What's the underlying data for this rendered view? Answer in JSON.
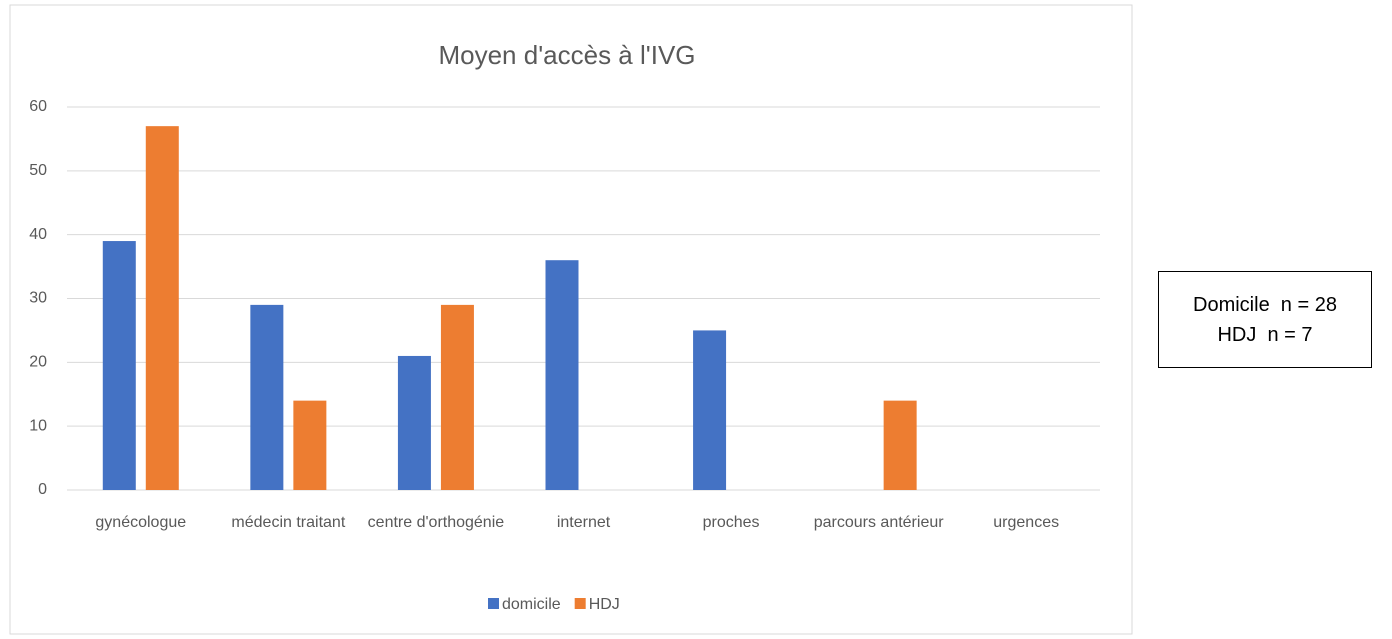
{
  "chart_data": {
    "type": "bar",
    "title": "Moyen d'accès à l'IVG",
    "categories": [
      "gynécologue",
      "médecin traitant",
      "centre d'orthogénie",
      "internet",
      "proches",
      "parcours antérieur",
      "urgences"
    ],
    "series": [
      {
        "name": "domicile",
        "color": "#4472c4",
        "values": [
          39,
          29,
          21,
          36,
          25,
          0,
          0
        ]
      },
      {
        "name": "HDJ",
        "color": "#ed7d31",
        "values": [
          57,
          14,
          29,
          0,
          0,
          14,
          0
        ]
      }
    ],
    "ylim": [
      0,
      60
    ],
    "yticks": [
      0,
      10,
      20,
      30,
      40,
      50,
      60
    ],
    "grid": true,
    "legend": "bottom",
    "annotations": [
      "Domicile  n = 28",
      "HDJ  n = 7"
    ]
  }
}
